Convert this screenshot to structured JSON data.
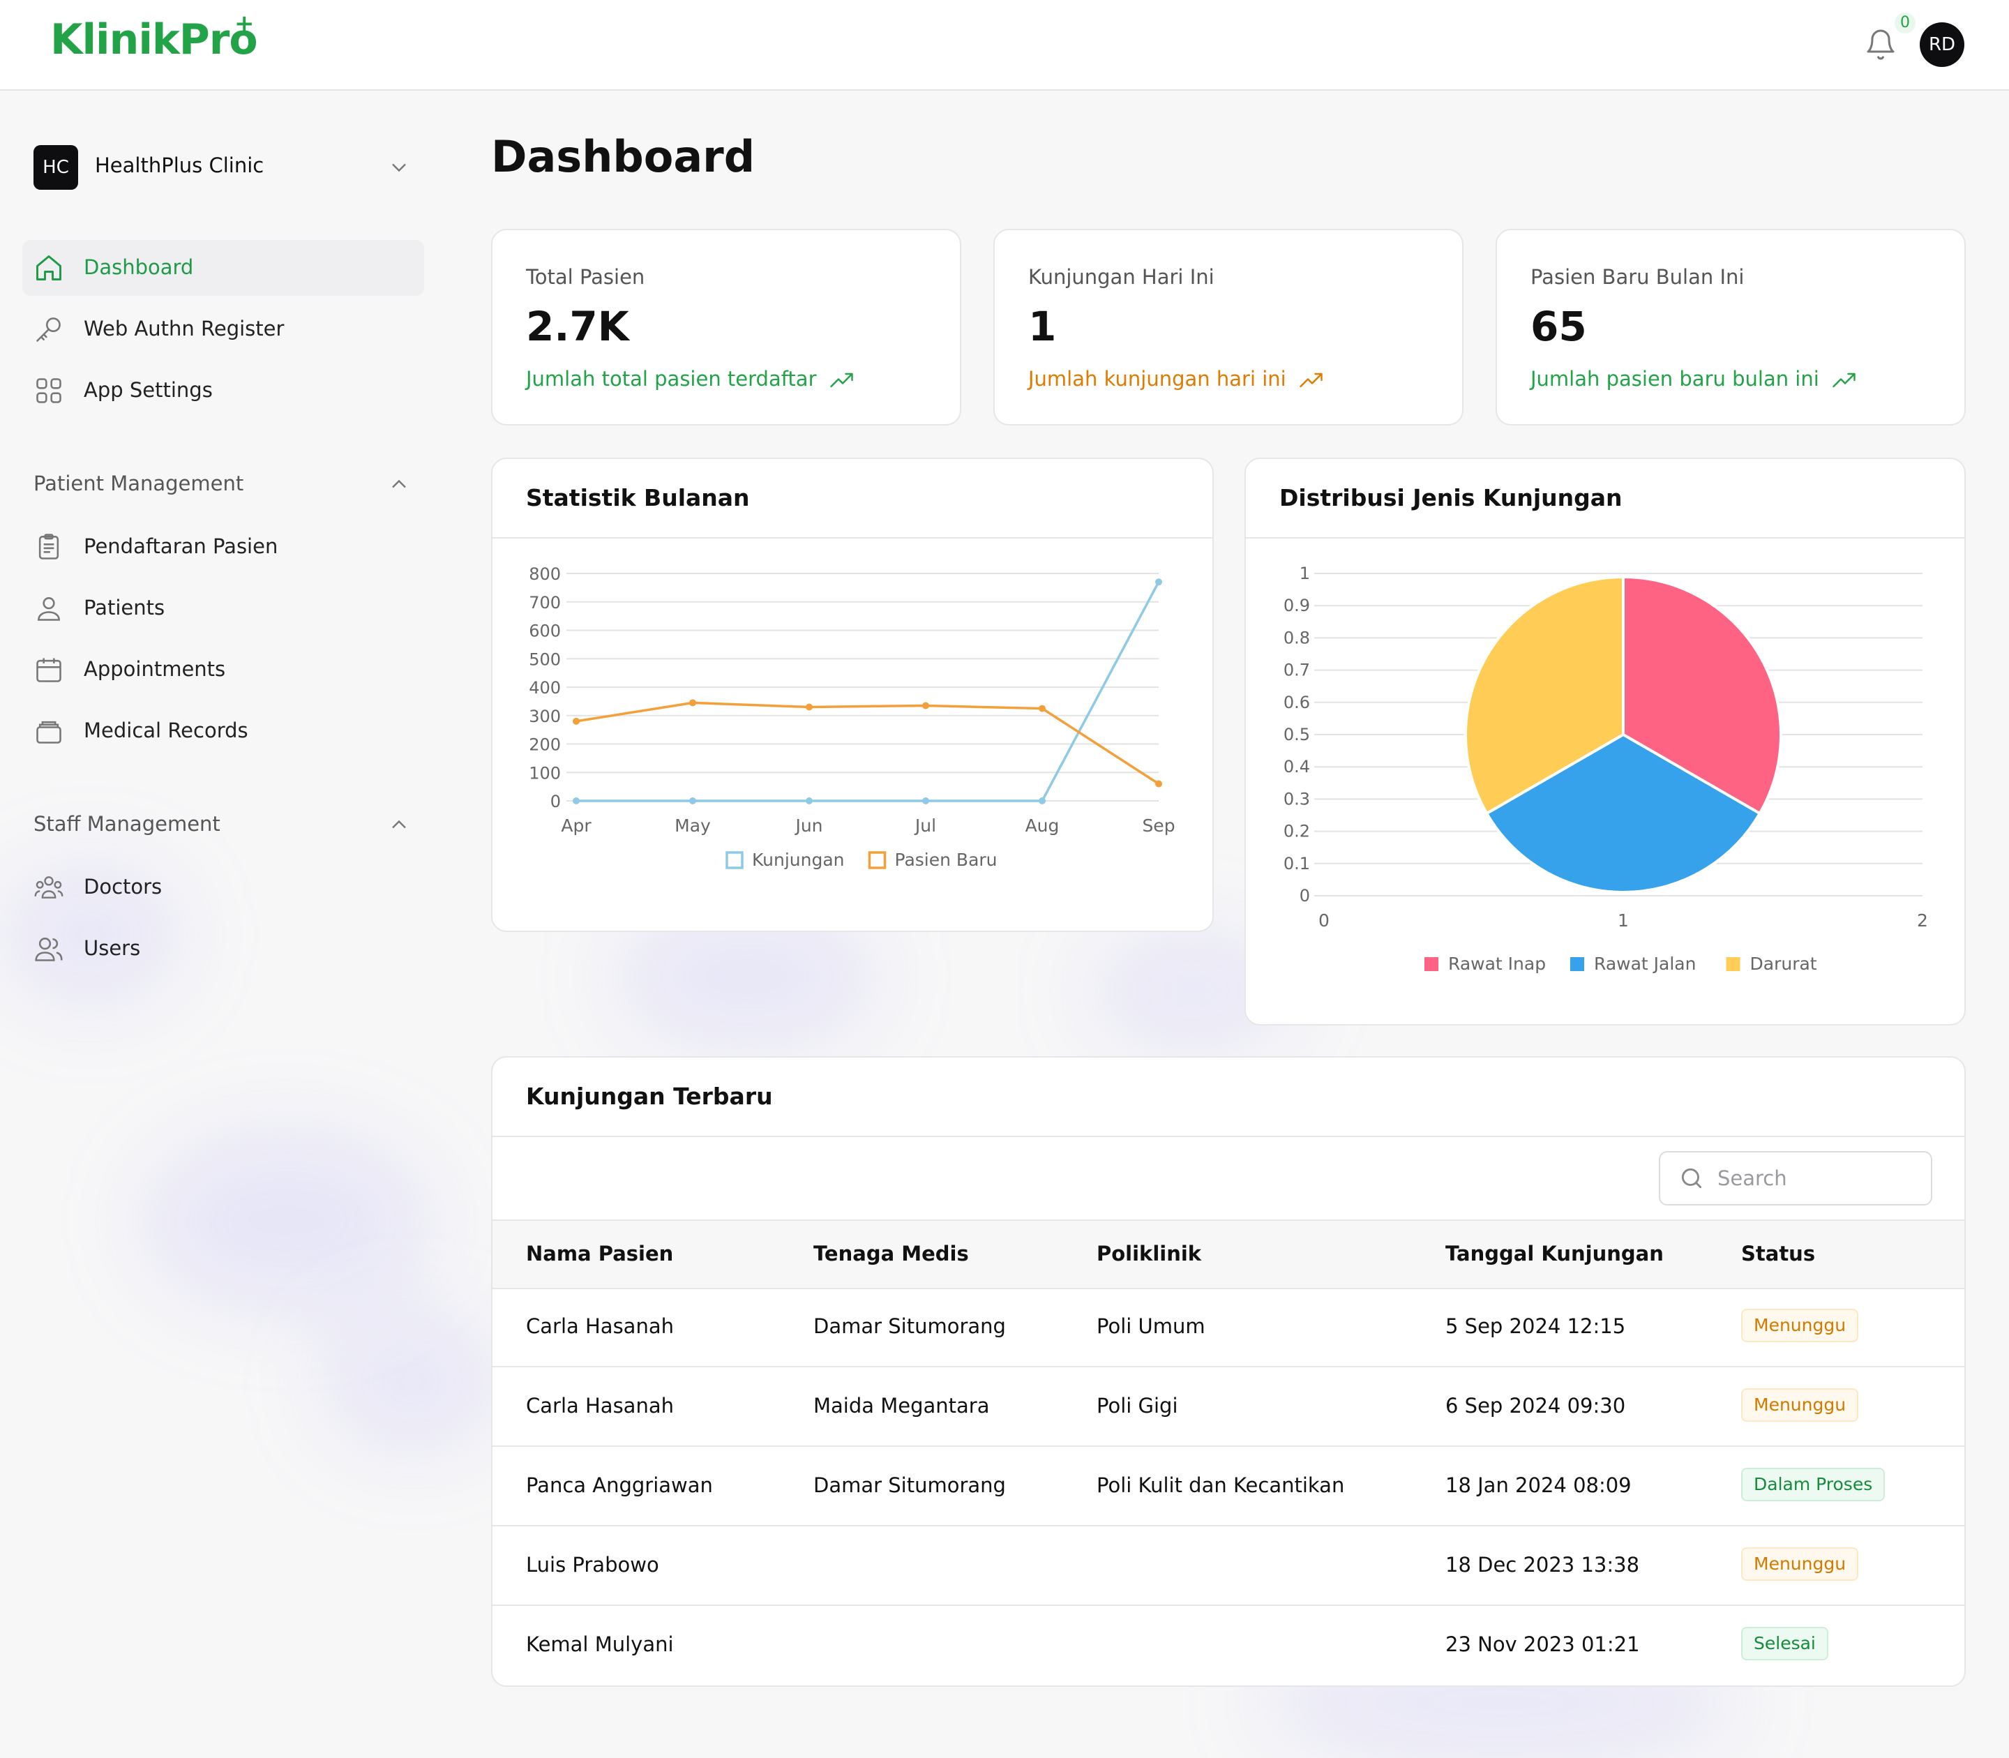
{
  "app": {
    "logo": "KlinikPro",
    "logo_mark": "+",
    "notification_count": "0",
    "user_initials": "RD"
  },
  "sidebar": {
    "org": {
      "initials": "HC",
      "name": "HealthPlus Clinic"
    },
    "items": [
      {
        "label": "Dashboard",
        "icon": "home-icon",
        "active": true
      },
      {
        "label": "Web Authn Register",
        "icon": "key-icon"
      },
      {
        "label": "App Settings",
        "icon": "grid-icon"
      }
    ],
    "sections": [
      {
        "title": "Patient Management",
        "items": [
          {
            "label": "Pendaftaran Pasien",
            "icon": "clipboard-icon"
          },
          {
            "label": "Patients",
            "icon": "user-icon"
          },
          {
            "label": "Appointments",
            "icon": "calendar-icon"
          },
          {
            "label": "Medical Records",
            "icon": "records-icon"
          }
        ]
      },
      {
        "title": "Staff Management",
        "items": [
          {
            "label": "Doctors",
            "icon": "doctors-icon"
          },
          {
            "label": "Users",
            "icon": "users-icon"
          }
        ]
      }
    ]
  },
  "main": {
    "title": "Dashboard",
    "stats": [
      {
        "label": "Total Pasien",
        "value": "2.7K",
        "sub": "Jumlah total pasien terdaftar",
        "color": "#22a347"
      },
      {
        "label": "Kunjungan Hari Ini",
        "value": "1",
        "sub": "Jumlah kunjungan hari ini",
        "color": "#e07b00"
      },
      {
        "label": "Pasien Baru Bulan Ini",
        "value": "65",
        "sub": "Jumlah pasien baru bulan ini",
        "color": "#22a347"
      }
    ],
    "line_chart_title": "Statistik Bulanan",
    "pie_chart_title": "Distribusi Jenis Kunjungan",
    "table": {
      "title": "Kunjungan Terbaru",
      "search_placeholder": "Search",
      "columns": [
        "Nama Pasien",
        "Tenaga Medis",
        "Poliklinik",
        "Tanggal Kunjungan",
        "Status"
      ],
      "rows": [
        {
          "name": "Carla Hasanah",
          "medic": "Damar Situmorang",
          "clinic": "Poli Umum",
          "date": "5 Sep 2024 12:15",
          "status": "Menunggu",
          "status_type": "wait"
        },
        {
          "name": "Carla Hasanah",
          "medic": "Maida Megantara",
          "clinic": "Poli Gigi",
          "date": "6 Sep 2024 09:30",
          "status": "Menunggu",
          "status_type": "wait"
        },
        {
          "name": "Panca Anggriawan",
          "medic": "Damar Situmorang",
          "clinic": "Poli Kulit dan Kecantikan",
          "date": "18 Jan 2024 08:09",
          "status": "Dalam Proses",
          "status_type": "proc"
        },
        {
          "name": "Luis Prabowo",
          "medic": "",
          "clinic": "",
          "date": "18 Dec 2023 13:38",
          "status": "Menunggu",
          "status_type": "wait"
        },
        {
          "name": "Kemal Mulyani",
          "medic": "",
          "clinic": "",
          "date": "23 Nov 2023 01:21",
          "status": "Selesai",
          "status_type": "done"
        }
      ]
    }
  },
  "chart_data": [
    {
      "type": "line",
      "title": "Statistik Bulanan",
      "categories": [
        "Apr",
        "May",
        "Jun",
        "Jul",
        "Aug",
        "Sep"
      ],
      "ylim": [
        0,
        800
      ],
      "yticks": [
        0,
        100,
        200,
        300,
        400,
        500,
        600,
        700,
        800
      ],
      "grid": true,
      "legend": "bottom",
      "series": [
        {
          "name": "Kunjungan",
          "color": "#8ecae6",
          "values": [
            0,
            0,
            0,
            0,
            0,
            770
          ]
        },
        {
          "name": "Pasien Baru",
          "color": "#f4a03a",
          "values": [
            280,
            345,
            330,
            335,
            325,
            60
          ]
        }
      ]
    },
    {
      "type": "pie",
      "title": "Distribusi Jenis Kunjungan",
      "labels": [
        "Rawat Inap",
        "Rawat Jalan",
        "Darurat"
      ],
      "values": [
        1,
        1,
        1
      ],
      "colors": [
        "#ff6384",
        "#36a2eb",
        "#ffcd56"
      ],
      "axis_y_ticks": [
        "0",
        "0.1",
        "0.2",
        "0.3",
        "0.4",
        "0.5",
        "0.6",
        "0.7",
        "0.8",
        "0.9",
        "1"
      ],
      "axis_x_ticks": [
        "0",
        "1",
        "2"
      ],
      "grid": true,
      "legend": "bottom"
    }
  ]
}
